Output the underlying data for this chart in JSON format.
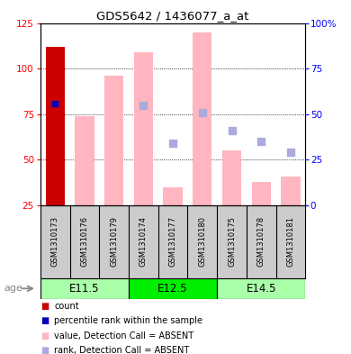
{
  "title": "GDS5642 / 1436077_a_at",
  "samples": [
    "GSM1310173",
    "GSM1310176",
    "GSM1310179",
    "GSM1310174",
    "GSM1310177",
    "GSM1310180",
    "GSM1310175",
    "GSM1310178",
    "GSM1310181"
  ],
  "groups": [
    {
      "label": "E11.5",
      "indices": [
        0,
        1,
        2
      ],
      "color": "#aaffaa"
    },
    {
      "label": "E12.5",
      "indices": [
        3,
        4,
        5
      ],
      "color": "#00ee00"
    },
    {
      "label": "E14.5",
      "indices": [
        6,
        7,
        8
      ],
      "color": "#aaffaa"
    }
  ],
  "bar_values_absent": [
    null,
    74,
    96,
    109,
    35,
    120,
    55,
    38,
    41
  ],
  "rank_dots_absent": [
    null,
    null,
    null,
    80,
    59,
    76,
    66,
    60,
    54
  ],
  "count_bar": {
    "index": 0,
    "value": 112
  },
  "percentile_bar": {
    "index": 0,
    "value": 81
  },
  "ylim_left": [
    25,
    125
  ],
  "ylim_right": [
    0,
    100
  ],
  "yticks_left": [
    25,
    50,
    75,
    100,
    125
  ],
  "yticks_right": [
    0,
    25,
    50,
    75,
    100
  ],
  "bar_color_absent": "#FFB6C1",
  "bar_color_count": "#CC0000",
  "dot_color_rank": "#AAAADD",
  "dot_color_percentile": "#0000BB",
  "bar_width": 0.65,
  "background_color": "#FFFFFF",
  "legend": [
    {
      "label": "count",
      "color": "#CC0000"
    },
    {
      "label": "percentile rank within the sample",
      "color": "#0000BB"
    },
    {
      "label": "value, Detection Call = ABSENT",
      "color": "#FFB6C1"
    },
    {
      "label": "rank, Detection Call = ABSENT",
      "color": "#AAAADD"
    }
  ]
}
